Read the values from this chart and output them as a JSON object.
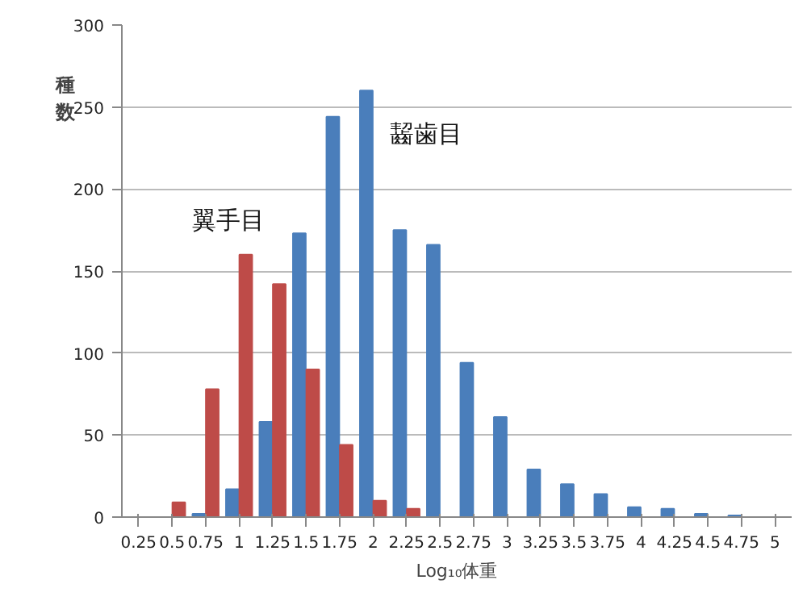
{
  "chart_data": {
    "type": "bar",
    "xlabel": "Log₁₀体重",
    "ylabel": "種数",
    "categories": [
      "0.25",
      "0.5",
      "0.75",
      "1",
      "1.25",
      "1.5",
      "1.75",
      "2",
      "2.25",
      "2.5",
      "2.75",
      "3",
      "3.25",
      "3.5",
      "3.75",
      "4",
      "4.25",
      "4.5",
      "4.75",
      "5"
    ],
    "series": [
      {
        "name": "齧歯目",
        "color": "#4a7ebb",
        "values": [
          0,
          0,
          2,
          17,
          58,
          173,
          244,
          260,
          175,
          166,
          94,
          61,
          29,
          20,
          14,
          6,
          5,
          2,
          1,
          0
        ]
      },
      {
        "name": "翼手目",
        "color": "#be4b48",
        "values": [
          0,
          9,
          78,
          160,
          142,
          90,
          44,
          10,
          5,
          0,
          0,
          0,
          0,
          0,
          0,
          0,
          0,
          0,
          0,
          0
        ]
      }
    ],
    "ylim": [
      0,
      300
    ],
    "yticks": [
      0,
      50,
      100,
      150,
      200,
      250,
      300
    ],
    "grid": "y"
  }
}
